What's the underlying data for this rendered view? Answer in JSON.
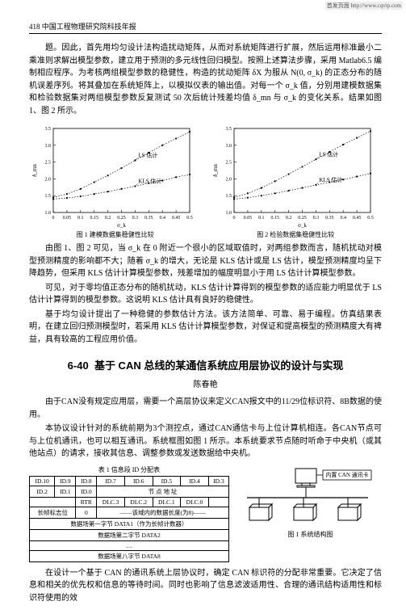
{
  "watermark": "首发页面 http://www.cqvip.com",
  "header": "418  中国工程物理研究院科技年报",
  "para1": "题。因此，首先用均匀设计法构造扰动矩阵，从而对系统矩阵进行扩展，然后运用标准最小二乘准则求解出模型参数，建立用于预测的多元线性回归模型。按照上述算法步骤，采用 Matlab6.5 编制相应程序。为考核两组模型参数的稳健性，构造的扰动矩阵 δX 为服从 N(0, σ_k) 的正态分布的随机误差序列。将其叠加在系统矩阵上，以模拟仪表的输出值。对每一个 σ_k 值，分别用建模数据集和检验数据集对两组模型参数反复测试 50 次后统计残差均值 δ_mn 与 σ_k 的变化关系。结果如图 1、图 2 所示。",
  "chart1": {
    "caption": "图 1  建模数据集稳健性比较",
    "xlabel": "σ_k",
    "ylabel": "δ_mn",
    "xlim": [
      0,
      0.5
    ],
    "xtick": [
      0,
      0.05,
      0.1,
      0.15,
      0.2,
      0.25,
      0.3,
      0.35,
      0.4,
      0.45,
      0.5
    ],
    "ylim": [
      1.0,
      3.5
    ],
    "ytick": [
      1.0,
      1.5,
      2.0,
      2.5,
      3.0,
      3.5
    ],
    "series": [
      {
        "label": "LS 估计",
        "marker": "dot",
        "y": [
          1.45,
          1.55,
          1.7,
          1.9,
          2.1,
          2.32,
          2.55,
          2.78,
          3.0,
          3.2,
          3.4
        ]
      },
      {
        "label": "KLS 估计",
        "marker": "dot",
        "y": [
          1.4,
          1.43,
          1.48,
          1.55,
          1.62,
          1.7,
          1.78,
          1.87,
          1.95,
          2.05,
          2.13
        ]
      }
    ],
    "line_color": "#000000",
    "bg_color": "#ffffff",
    "grid_color": "#000000",
    "fontsize": 6
  },
  "chart2": {
    "caption": "图 2  检验数据集稳健性比较",
    "xlabel": "σ_k",
    "ylabel": "δ_mn",
    "xlim": [
      0,
      0.5
    ],
    "xtick": [
      0,
      0.05,
      0.1,
      0.15,
      0.2,
      0.25,
      0.3,
      0.35,
      0.4,
      0.45,
      0.5
    ],
    "ylim": [
      1.0,
      3.5
    ],
    "ytick": [
      1.0,
      1.5,
      2.0,
      2.5,
      3.0,
      3.5
    ],
    "series": [
      {
        "label": "LS 估计",
        "marker": "dot",
        "y": [
          1.45,
          1.57,
          1.73,
          1.93,
          2.14,
          2.36,
          2.58,
          2.8,
          3.02,
          3.22,
          3.42
        ]
      },
      {
        "label": "KLS 估计",
        "marker": "dot",
        "y": [
          1.4,
          1.44,
          1.5,
          1.57,
          1.65,
          1.73,
          1.82,
          1.9,
          1.98,
          2.07,
          2.16
        ]
      }
    ],
    "line_color": "#000000",
    "bg_color": "#ffffff",
    "grid_color": "#000000",
    "fontsize": 6
  },
  "para2": "由图 1、图 2 可见，当 σ_k 在 0 附近一个很小的区域取值时，对两组参数而言，随机扰动对模型预测精度的影响都不大；随着 σ_k 的增大，无论是 KLS 估计或是 LS 估计，模型预测精度均呈下降趋势，但采用 KLS 估计计算模型参数，残差增加的幅度明显小于用 LS 估计计算模型参数。",
  "para3": "可见，对于零均值正态分布的随机扰动，KLS 估计计算得到的模型参数的适应能力明显优于 LS 估计计算得到的模型参数。这说明 KLS 估计具有良好的稳健性。",
  "para4": "基于均匀设计提出了一种稳健的参数估计方法。该方法简单、可靠、易于编程。仿真结果表明，在建立回归预测模型时，若采用 KLS 估计计算模型参数，对保证和提高模型的预测精度大有裨益，具有较高的工程应用价值。",
  "section_no": "6-40",
  "section_title": "基于 CAN 总线的某通信系统应用层协议的设计与实现",
  "author": "陈春艳",
  "para5": "由于CAN没有规定应用层，需要一个高层协议来定义CAN报文中的11/29位标识符、8B数据的使用。",
  "para6": "本协议设计针对的系统前期为3个测控点，通过CAN通信卡与上位计算机相连。各CAN节点可与上位机通讯，也可以相互通讯。系统框图如图 1 所示。本系统要求节点随时听命于中央机（或其他站点）的请求，接收其信息、调整参数或发送数据给中央机。",
  "table_caption": "表 1  信息段 ID 分配表",
  "table": {
    "rows": [
      [
        "ID.10",
        "ID.9",
        "ID.8",
        "ID.7",
        "ID.6",
        "ID.5",
        "ID.4",
        "ID.3"
      ],
      [
        "ID.2",
        "ID.1",
        "ID.0",
        " ",
        " ",
        " ",
        " ",
        " "
      ],
      [
        " ",
        " ",
        " ",
        "节 点 地 址",
        " ",
        " ",
        " ",
        " "
      ],
      [
        " ",
        " ",
        "RTR",
        "DLC.3",
        "DLC.2",
        "DLC.1",
        "DLC.0",
        " "
      ],
      [
        "长帧标志位",
        " ",
        "0",
        "——该域内的数据长度(为8)——",
        " ",
        " ",
        " ",
        " "
      ],
      [
        "数据场第一字节 DATA1（作为长帧计数器）",
        " ",
        " ",
        " ",
        " ",
        " ",
        " ",
        " "
      ],
      [
        "数据场第二字节 DATA2",
        " ",
        " ",
        " ",
        " ",
        " ",
        " ",
        " "
      ],
      [
        "…",
        " ",
        " ",
        " ",
        " ",
        " ",
        " ",
        " "
      ],
      [
        "数据场第八字节 DATA8",
        " ",
        " ",
        " ",
        " ",
        " ",
        " ",
        " "
      ]
    ],
    "border_color": "#000000",
    "fontsize": 7.5
  },
  "diagram": {
    "caption": "图 1  系统结构图",
    "pc_label": "内置 CAN 通讯卡",
    "node_count": 3,
    "line_color": "#000000"
  },
  "para7": "在设计一个基于 CAN 的通讯系统上层协议时，确定 CAN 标识符的分配非常重要。它决定了信息和相关的优先权和信息的等待时间。同时也影响了信息滤波适用性、合理的通讯结构适用性和标识符使用的效"
}
